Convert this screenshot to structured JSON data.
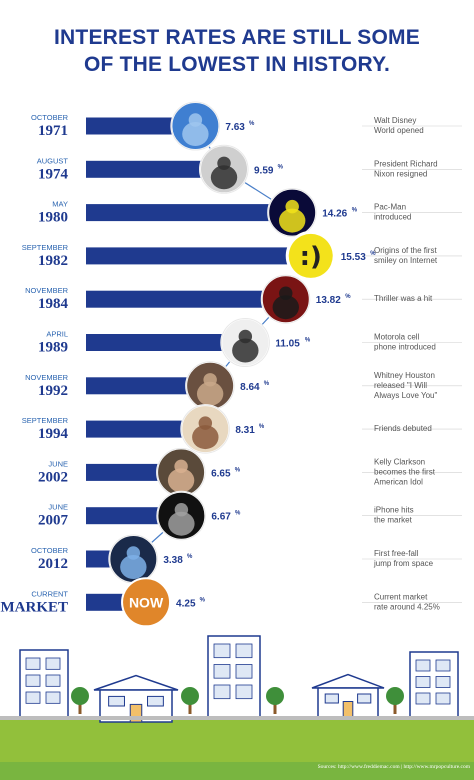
{
  "title_lines": [
    "INTEREST RATES ARE STILL SOME",
    "OF THE LOWEST IN HISTORY."
  ],
  "colors": {
    "bar": "#1f3a8f",
    "title": "#1f3a8f",
    "month": "#2a64b0",
    "now_fill": "#e0862a",
    "smiley": "#f3e21b",
    "grass": "#92c03b"
  },
  "chart_data": {
    "type": "bar",
    "orientation": "horizontal",
    "value_unit": "%",
    "rows": [
      {
        "month": "OCTOBER",
        "year": "1971",
        "value": 7.63,
        "event": [
          "Walt Disney",
          "World opened"
        ],
        "icon": "castle-photo"
      },
      {
        "month": "AUGUST",
        "year": "1974",
        "value": 9.59,
        "event": [
          "President Richard",
          "Nixon resigned"
        ],
        "icon": "nixon-photo"
      },
      {
        "month": "MAY",
        "year": "1980",
        "value": 14.26,
        "event": [
          "Pac-Man",
          "introduced"
        ],
        "icon": "pacman-photo"
      },
      {
        "month": "SEPTEMBER",
        "year": "1982",
        "value": 15.53,
        "event": [
          "Origins of the first",
          "smiley on Internet"
        ],
        "icon": "smiley-icon"
      },
      {
        "month": "NOVEMBER",
        "year": "1984",
        "value": 13.82,
        "event": [
          "Thriller was a hit"
        ],
        "icon": "thriller-photo"
      },
      {
        "month": "APRIL",
        "year": "1989",
        "value": 11.05,
        "event": [
          "Motorola cell",
          "phone introduced"
        ],
        "icon": "cellphone-photo"
      },
      {
        "month": "NOVEMBER",
        "year": "1992",
        "value": 8.64,
        "event": [
          "Whitney Houston",
          "released \"I Will",
          "Always Love You\""
        ],
        "icon": "whitney-photo"
      },
      {
        "month": "SEPTEMBER",
        "year": "1994",
        "value": 8.31,
        "event": [
          "Friends debuted"
        ],
        "icon": "friends-photo"
      },
      {
        "month": "JUNE",
        "year": "2002",
        "value": 6.65,
        "event": [
          "Kelly Clarkson",
          "becomes the first",
          "American Idol"
        ],
        "icon": "kelly-photo"
      },
      {
        "month": "JUNE",
        "year": "2007",
        "value": 6.67,
        "event": [
          "iPhone hits",
          "the market"
        ],
        "icon": "iphone-photo"
      },
      {
        "month": "OCTOBER",
        "year": "2012",
        "value": 3.38,
        "event": [
          "First free-fall",
          "jump from space"
        ],
        "icon": "jump-photo"
      },
      {
        "month": "CURRENT",
        "year": "MARKET",
        "value": 4.25,
        "event": [
          "Current market",
          "rate around 4.25%"
        ],
        "icon": "now-badge",
        "badge": "NOW"
      }
    ]
  },
  "source": "Sources: http://www.freddiemac.com  |  http://www.mrpopculture.com"
}
